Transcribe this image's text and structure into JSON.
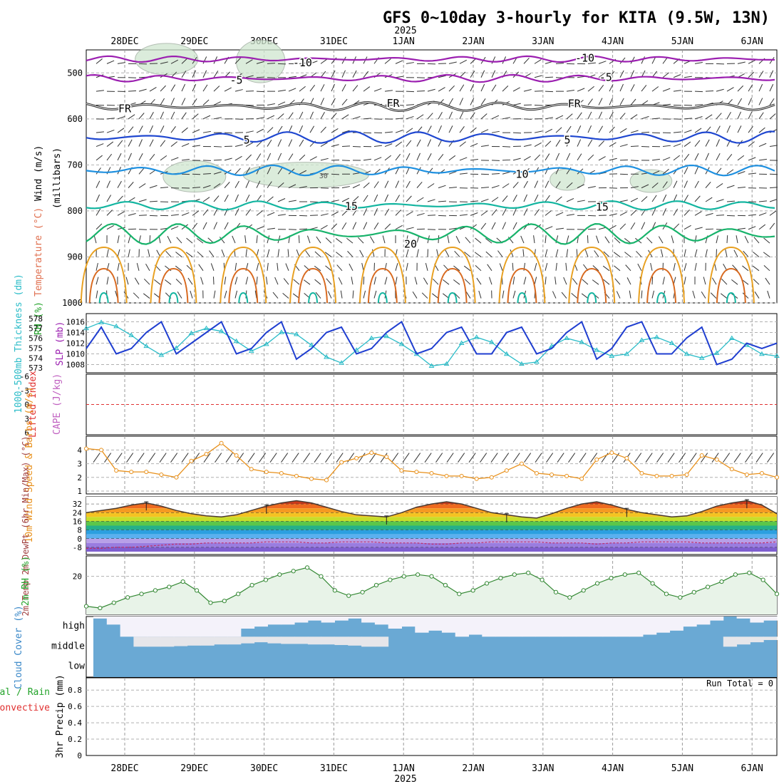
{
  "title": "GFS 0~10day 3-hourly for KITA (9.5W, 13N)",
  "year_label": "2025",
  "run_total_label": "Run Total = 0",
  "colors": {
    "temp_purple": "#9b1fb0",
    "temp_blue": "#1f47d0",
    "temp_sky": "#1e90e0",
    "temp_teal": "#13b5a0",
    "temp_green": "#18b36b",
    "temp_orange": "#e8a020",
    "temp_darkorange": "#d86a20",
    "slp_line": "#1f3ed0",
    "thickness_line": "#2bbcc8",
    "wind10m": "#e8901a",
    "rh": "#23a32a",
    "cloud": "#6aa9d4",
    "lifted_index_zero": "#e03030"
  },
  "chart_data": [
    {
      "type": "line",
      "panel": "upper-air",
      "ylabel_parts": [
        "RH (%)",
        "Temperature (°C)",
        "Wind (m/s)"
      ],
      "ylabel_unit": "(millibars)",
      "yticks": [
        500,
        600,
        700,
        800,
        900,
        1000
      ],
      "ylim": [
        450,
        1000
      ],
      "x_dates": [
        "28DEC",
        "29DEC",
        "30DEC",
        "31DEC",
        "1JAN",
        "2JAN",
        "3JAN",
        "4JAN",
        "5JAN",
        "6JAN"
      ],
      "isotherm_labels": [
        {
          "text": "-10",
          "x_day": 2.55,
          "p": 478
        },
        {
          "text": "-10",
          "x_day": 6.6,
          "p": 468
        },
        {
          "text": "-5",
          "x_day": 1.6,
          "p": 516
        },
        {
          "text": "-5",
          "x_day": 6.9,
          "p": 510
        },
        {
          "text": "FR",
          "x_day": 0.0,
          "p": 578
        },
        {
          "text": "FR",
          "x_day": 3.85,
          "p": 566
        },
        {
          "text": "FR",
          "x_day": 6.45,
          "p": 567
        },
        {
          "text": "5",
          "x_day": 1.75,
          "p": 646
        },
        {
          "text": "5",
          "x_day": 6.35,
          "p": 646
        },
        {
          "text": "10",
          "x_day": 5.7,
          "p": 720
        },
        {
          "text": "15",
          "x_day": 3.25,
          "p": 790
        },
        {
          "text": "15",
          "x_day": 6.85,
          "p": 792
        },
        {
          "text": "20",
          "x_day": 4.1,
          "p": 872
        }
      ],
      "rh_labels": [
        {
          "text": "30",
          "x_day": 2.85,
          "p": 723
        }
      ],
      "isotherms": [
        {
          "name": "-10",
          "color": "#9b1fb0",
          "base": 470,
          "amp": 4
        },
        {
          "name": "-5",
          "color": "#9b1fb0",
          "base": 512,
          "amp": 5
        },
        {
          "name": "FR",
          "color": "#222222",
          "base": 573,
          "amp": 6
        },
        {
          "name": "5",
          "color": "#1f47d0",
          "base": 640,
          "amp": 8
        },
        {
          "name": "10",
          "color": "#1e90e0",
          "base": 712,
          "amp": 7
        },
        {
          "name": "15",
          "color": "#13b5a0",
          "base": 788,
          "amp": 6
        },
        {
          "name": "20",
          "color": "#18b36b",
          "base": 850,
          "amp": 14
        }
      ]
    },
    {
      "type": "line",
      "panel": "slp-thickness",
      "ylabel_left": "1000-500mb Thickness (dm)",
      "ylabel_right": "SLP (mb)",
      "thickness_ticks": [
        573,
        574,
        575,
        576,
        577,
        578
      ],
      "slp_ticks": [
        1008,
        1010,
        1012,
        1014,
        1016
      ],
      "slp": [
        1011,
        1015,
        1010,
        1011,
        1014,
        1016,
        1010,
        1012,
        1014,
        1016,
        1010,
        1011,
        1014,
        1016,
        1009,
        1011,
        1014,
        1015,
        1010,
        1011,
        1014,
        1016,
        1010,
        1011,
        1014,
        1015,
        1010,
        1010,
        1014,
        1015,
        1010,
        1011,
        1014,
        1016,
        1009,
        1011,
        1015,
        1016,
        1010,
        1010,
        1013,
        1015,
        1008,
        1009,
        1012,
        1011,
        1012
      ],
      "thickness": [
        577.0,
        577.6,
        577.2,
        576.3,
        575.2,
        574.3,
        575.0,
        576.5,
        577.0,
        576.7,
        575.7,
        574.7,
        575.4,
        576.6,
        576.4,
        575.3,
        574.1,
        573.5,
        574.8,
        576.0,
        576.2,
        575.4,
        574.4,
        573.2,
        573.4,
        575.5,
        576.1,
        575.6,
        574.4,
        573.4,
        573.6,
        575.2,
        576.0,
        575.6,
        574.8,
        574.2,
        574.4,
        575.8,
        576.1,
        575.5,
        574.4,
        574.0,
        574.5,
        576.0,
        575.3,
        574.4,
        574.2
      ]
    },
    {
      "type": "line",
      "panel": "stability",
      "ylabel_left": "Lifted Index",
      "ylabel_right": "CAPE (J/kg)",
      "yticks": [
        "-6",
        "-3",
        "0",
        "3",
        "6"
      ],
      "lifted_index": [],
      "cape": []
    },
    {
      "type": "line",
      "panel": "wind10m",
      "ylabel": "10m Wind Speed & Barbs (m/s)",
      "yticks": [
        1,
        2,
        3,
        4
      ],
      "ylim": [
        1,
        4.8
      ],
      "speed": [
        4.1,
        4.0,
        2.5,
        2.4,
        2.4,
        2.2,
        2.0,
        3.2,
        3.7,
        4.5,
        3.6,
        2.6,
        2.4,
        2.3,
        2.1,
        1.9,
        1.8,
        3.1,
        3.4,
        3.8,
        3.5,
        2.5,
        2.4,
        2.3,
        2.1,
        2.1,
        1.9,
        2.0,
        2.5,
        3.0,
        2.3,
        2.2,
        2.1,
        1.9,
        3.3,
        3.8,
        3.4,
        2.3,
        2.1,
        2.1,
        2.2,
        3.6,
        3.3,
        2.6,
        2.2,
        2.3,
        2.0
      ],
      "barb_angle_deg": 35
    },
    {
      "type": "area",
      "panel": "temp2m",
      "ylabel": "2m Temp 2m DewPt (6hr Min/Max) (°C)",
      "yticks": [
        -8,
        0,
        8,
        16,
        24,
        32
      ],
      "ylim": [
        -12,
        36
      ],
      "temp": [
        24,
        26,
        28,
        31,
        33,
        30,
        26,
        23,
        21,
        20,
        22,
        26,
        30,
        33,
        35,
        33,
        29,
        25,
        22,
        21,
        20,
        24,
        29,
        32,
        34,
        32,
        28,
        24,
        22,
        20,
        19,
        23,
        28,
        32,
        34,
        31,
        27,
        24,
        22,
        20,
        21,
        25,
        30,
        33,
        35,
        31,
        23
      ],
      "dewpoint": [
        -9,
        -9,
        -8,
        -8,
        -7,
        -6,
        -5,
        -5,
        -4,
        -4,
        -4,
        -4,
        -3,
        -3,
        -3,
        -4,
        -4,
        -3,
        -3,
        -3,
        -4,
        -4,
        -4,
        -5,
        -5,
        -4,
        -4,
        -3,
        -3,
        -3,
        -3,
        -4,
        -4,
        -4,
        -5,
        -4,
        -4,
        -3,
        -3,
        -3,
        -3,
        -4,
        -4,
        -4,
        -4,
        -4,
        -3
      ]
    },
    {
      "type": "area",
      "panel": "rh2m",
      "ylabel": "2m RH (%)",
      "yticks": [
        20
      ],
      "ylim": [
        0,
        30
      ],
      "rh": [
        3,
        2,
        5,
        8,
        10,
        12,
        14,
        17,
        12,
        5,
        6,
        10,
        15,
        18,
        21,
        23,
        25,
        20,
        12,
        9,
        11,
        15,
        18,
        20,
        21,
        20,
        15,
        10,
        12,
        16,
        19,
        21,
        22,
        18,
        11,
        8,
        12,
        16,
        19,
        21,
        22,
        16,
        10,
        8,
        11,
        14,
        17,
        21,
        22,
        18,
        10
      ]
    },
    {
      "type": "bar",
      "panel": "cloud",
      "ylabel": "Cloud Cover (%)",
      "levels": [
        "high",
        "middle",
        "low"
      ],
      "high": [
        90,
        60,
        0,
        0,
        0,
        0,
        0,
        0,
        0,
        0,
        0,
        40,
        50,
        60,
        60,
        70,
        80,
        70,
        80,
        90,
        70,
        60,
        40,
        50,
        20,
        30,
        20,
        0,
        10,
        0,
        0,
        0,
        0,
        0,
        0,
        0,
        0,
        0,
        0,
        0,
        0,
        10,
        20,
        30,
        50,
        60,
        80,
        100,
        90,
        70,
        80
      ],
      "middle": [
        0,
        0,
        0,
        10,
        10,
        10,
        15,
        20,
        20,
        30,
        30,
        40,
        50,
        40,
        35,
        35,
        30,
        30,
        25,
        20,
        10,
        10,
        0,
        0,
        0,
        0,
        0,
        0,
        0,
        0,
        0,
        0,
        0,
        0,
        0,
        0,
        0,
        0,
        0,
        0,
        0,
        0,
        0,
        0,
        0,
        0,
        0,
        10,
        30,
        50,
        70
      ],
      "low": []
    },
    {
      "type": "bar",
      "panel": "precip",
      "ylabel": "3hr Precip (mm)",
      "legend": [
        "Total / Rain",
        "Convective"
      ],
      "yticks": [
        0,
        0.2,
        0.4,
        0.6,
        0.8
      ],
      "ylim": [
        0,
        0.95
      ],
      "total": [],
      "convective": []
    }
  ]
}
